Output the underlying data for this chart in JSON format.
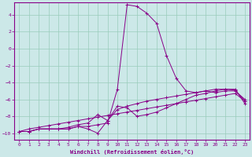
{
  "xlabel": "Windchill (Refroidissement éolien,°C)",
  "bg_color": "#cce8e8",
  "line_color": "#880088",
  "grid_color": "#99ccbb",
  "xlim": [
    -0.5,
    23.5
  ],
  "ylim": [
    -10.8,
    5.5
  ],
  "yticks": [
    -10,
    -8,
    -6,
    -4,
    -2,
    0,
    2,
    4
  ],
  "xticks": [
    0,
    1,
    2,
    3,
    4,
    5,
    6,
    7,
    8,
    9,
    10,
    11,
    12,
    13,
    14,
    15,
    16,
    17,
    18,
    19,
    20,
    21,
    22,
    23
  ],
  "series": [
    {
      "x": [
        0,
        1,
        2,
        3,
        4,
        5,
        6,
        7,
        8,
        9,
        10,
        11,
        12,
        13,
        14,
        15,
        16,
        17,
        18,
        19,
        20,
        21,
        22,
        23
      ],
      "y": [
        -9.8,
        -9.8,
        -9.5,
        -9.5,
        -9.5,
        -9.5,
        -9.2,
        -9.2,
        -9.0,
        -8.8,
        -4.8,
        5.2,
        5.0,
        4.2,
        3.0,
        -0.8,
        -3.5,
        -5.0,
        -5.2,
        -5.0,
        -5.2,
        -5.0,
        -5.0,
        -6.0
      ]
    },
    {
      "x": [
        0,
        1,
        2,
        3,
        4,
        5,
        6,
        7,
        8,
        9,
        10,
        11,
        12,
        13,
        14,
        15,
        16,
        17,
        18,
        19,
        20,
        21,
        22,
        23
      ],
      "y": [
        -9.8,
        -9.8,
        -9.5,
        -9.5,
        -9.5,
        -9.3,
        -9.0,
        -8.8,
        -7.8,
        -8.5,
        -7.2,
        -6.8,
        -6.5,
        -6.2,
        -6.0,
        -5.8,
        -5.6,
        -5.4,
        -5.2,
        -5.0,
        -4.8,
        -4.8,
        -4.9,
        -6.2
      ]
    },
    {
      "x": [
        0,
        1,
        2,
        3,
        4,
        5,
        6,
        7,
        8,
        9,
        10,
        11,
        12,
        13,
        14,
        15,
        16,
        17,
        18,
        19,
        20,
        21,
        22,
        23
      ],
      "y": [
        -9.8,
        -9.5,
        -9.3,
        -9.1,
        -8.9,
        -8.7,
        -8.5,
        -8.3,
        -8.1,
        -7.9,
        -7.7,
        -7.5,
        -7.3,
        -7.1,
        -6.9,
        -6.7,
        -6.5,
        -6.3,
        -6.1,
        -5.9,
        -5.7,
        -5.5,
        -5.3,
        -6.2
      ]
    },
    {
      "x": [
        0,
        1,
        2,
        3,
        4,
        5,
        6,
        7,
        8,
        9,
        10,
        11,
        12,
        13,
        14,
        15,
        16,
        17,
        18,
        19,
        20,
        21,
        22,
        23
      ],
      "y": [
        -9.8,
        -9.8,
        -9.5,
        -9.5,
        -9.5,
        -9.5,
        -9.2,
        -9.5,
        -10.0,
        -8.5,
        -6.8,
        -7.0,
        -8.0,
        -7.8,
        -7.5,
        -7.0,
        -6.5,
        -6.0,
        -5.5,
        -5.3,
        -5.0,
        -4.8,
        -4.8,
        -6.5
      ]
    }
  ]
}
